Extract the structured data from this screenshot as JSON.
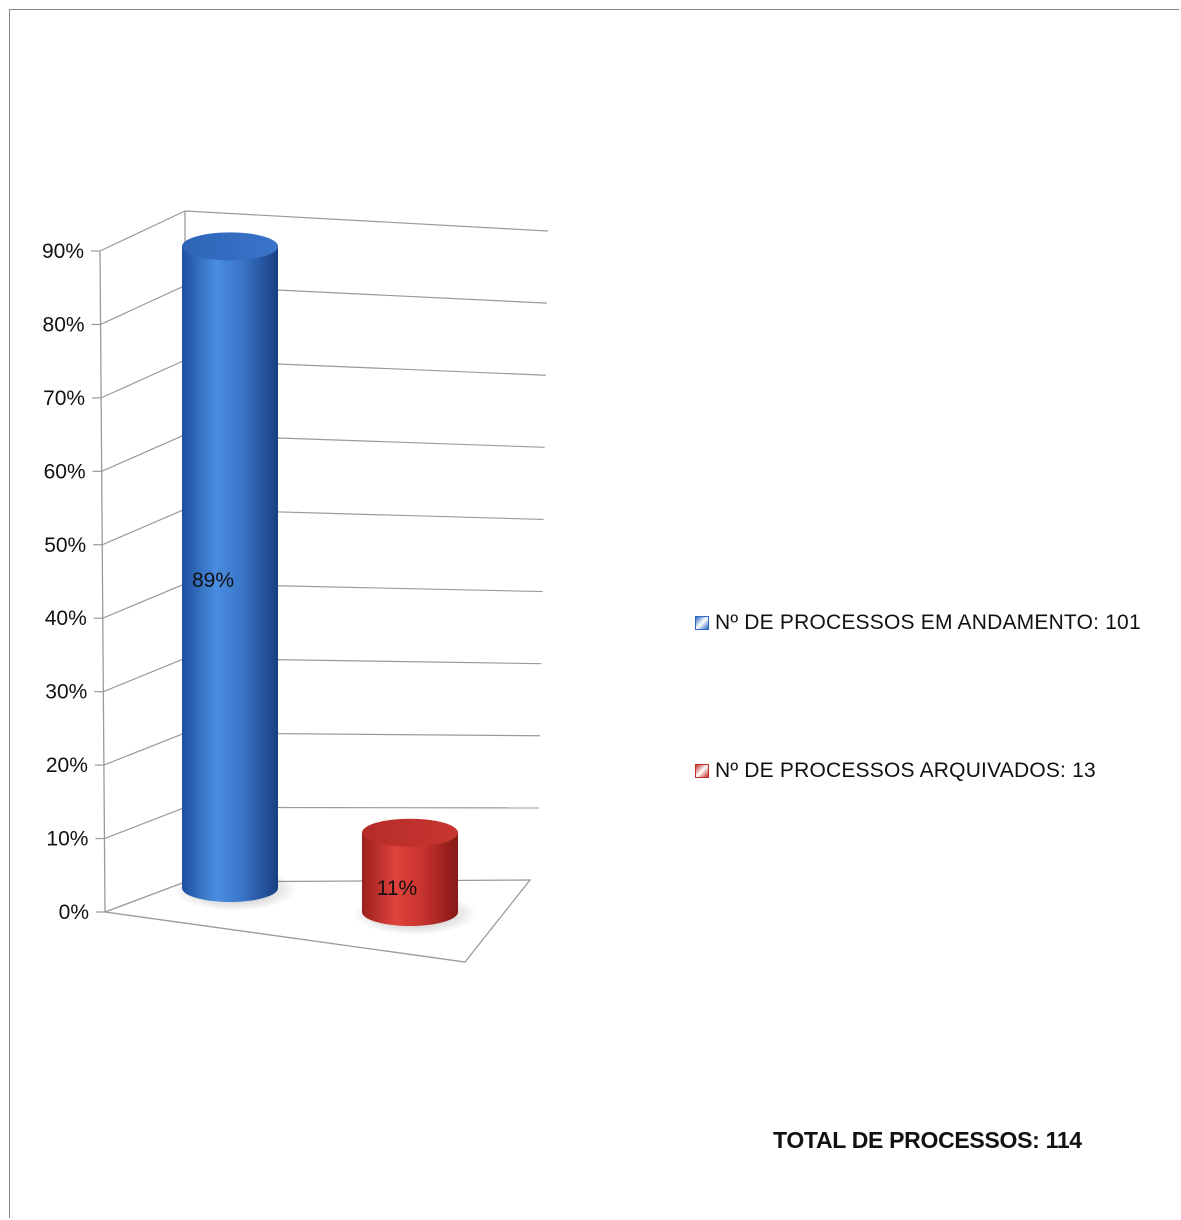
{
  "chart_data": {
    "type": "bar",
    "categories": [
      "Nº DE PROCESSOS EM ANDAMENTO: 101",
      "Nº DE PROCESSOS ARQUIVADOS: 13"
    ],
    "values": [
      89,
      11
    ],
    "data_labels": [
      "89%",
      "11%"
    ],
    "yticks": [
      "0%",
      "10%",
      "20%",
      "30%",
      "40%",
      "50%",
      "60%",
      "70%",
      "80%",
      "90%"
    ],
    "ylim": [
      0,
      90
    ],
    "grid": true,
    "legend_position": "right",
    "legend": [
      {
        "label": "Nº DE PROCESSOS EM ANDAMENTO: 101",
        "color": "#2f68c0"
      },
      {
        "label": "Nº DE PROCESSOS ARQUIVADOS: 13",
        "color": "#c0302c"
      }
    ],
    "colors": [
      "#2f68c0",
      "#c0302c"
    ]
  },
  "annotation": {
    "total": "TOTAL DE PROCESSOS: 114"
  }
}
